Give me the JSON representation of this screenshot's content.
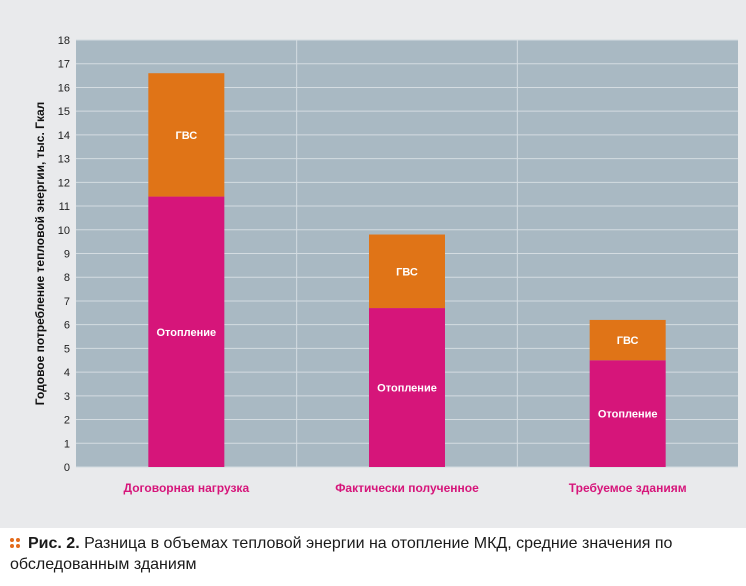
{
  "chart_data": {
    "type": "bar",
    "stacked": true,
    "categories": [
      "Договорная нагрузка",
      "Фактически полученное",
      "Требуемое зданиям"
    ],
    "series": [
      {
        "name": "Отопление",
        "values": [
          11.4,
          6.7,
          4.5
        ],
        "color": "#d6157a"
      },
      {
        "name": "ГВС",
        "values": [
          5.2,
          3.1,
          1.7
        ],
        "color": "#e07417"
      }
    ],
    "ylabel": "Годовое потребление тепловой энергии, тыс. Гкал",
    "ylim": [
      0,
      18
    ],
    "yticks": [
      0,
      1,
      2,
      3,
      4,
      5,
      6,
      7,
      8,
      9,
      10,
      11,
      12,
      13,
      14,
      15,
      16,
      17,
      18
    ],
    "category_label_color": "#d6157a",
    "plot_background": "#a9b9c3",
    "gridlines": true,
    "legend": "none"
  },
  "caption": {
    "label": "Рис. 2.",
    "text": " Разница в объемах тепловой энергии на отопление МКД, средние значения по обследованным зданиям"
  }
}
